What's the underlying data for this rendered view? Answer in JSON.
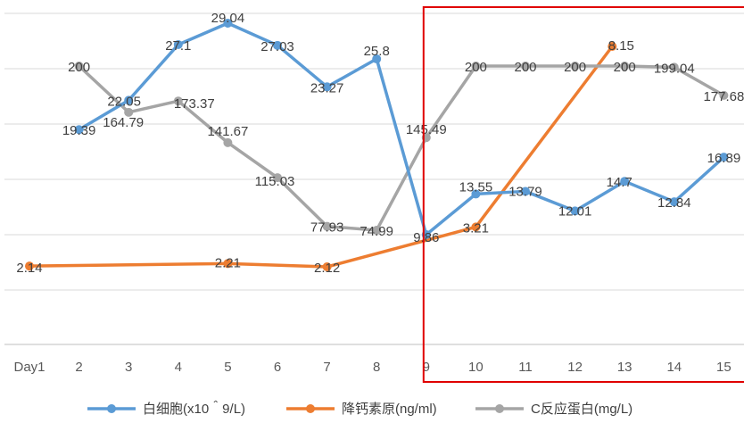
{
  "chart_data": {
    "type": "line",
    "title": "",
    "xlabel": "",
    "ylabel": "",
    "categories": [
      "Day1",
      "2",
      "3",
      "4",
      "5",
      "6",
      "7",
      "8",
      "9",
      "10",
      "11",
      "12",
      "13",
      "14",
      "15"
    ],
    "grid": true,
    "legend_position": "bottom",
    "series": [
      {
        "name": "白细胞(x10＾9/L)",
        "color": "#5b9bd5",
        "points": [
          {
            "x": "2",
            "y": 19.39,
            "label": "19.39"
          },
          {
            "x": "3",
            "y": 22.05,
            "label": "22.05"
          },
          {
            "x": "4",
            "y": 27.1,
            "label": "27.1"
          },
          {
            "x": "5",
            "y": 29.04,
            "label": "29.04"
          },
          {
            "x": "6",
            "y": 27.03,
            "label": "27.03"
          },
          {
            "x": "7",
            "y": 23.27,
            "label": "23.27"
          },
          {
            "x": "8",
            "y": 25.8,
            "label": "25.8"
          },
          {
            "x": "9",
            "y": 9.86,
            "label": "9.86"
          },
          {
            "x": "10",
            "y": 13.55,
            "label": "13.55"
          },
          {
            "x": "11",
            "y": 13.79,
            "label": "13.79"
          },
          {
            "x": "12",
            "y": 12.01,
            "label": "12.01"
          },
          {
            "x": "13",
            "y": 14.7,
            "label": "14.7"
          },
          {
            "x": "14",
            "y": 12.84,
            "label": "12.84"
          },
          {
            "x": "15",
            "y": 16.89,
            "label": "16.89"
          }
        ]
      },
      {
        "name": "降钙素原(ng/ml)",
        "color": "#ed7d31",
        "points": [
          {
            "x": "Day1",
            "y": 2.14,
            "label": "2.14"
          },
          {
            "x": "5",
            "y": 2.21,
            "label": "2.21"
          },
          {
            "x": "7",
            "y": 2.12,
            "label": "2.12"
          },
          {
            "x": "10",
            "y": 3.21,
            "label": "3.21"
          },
          {
            "x": "12.75",
            "y": 8.15,
            "label": "8.15"
          }
        ]
      },
      {
        "name": "C反应蛋白(mg/L)",
        "color": "#a5a5a5",
        "points": [
          {
            "x": "2",
            "y": 200,
            "label": "200"
          },
          {
            "x": "3",
            "y": 164.79,
            "label": "164.79"
          },
          {
            "x": "4",
            "y": 173.37,
            "label": "173.37"
          },
          {
            "x": "5",
            "y": 141.67,
            "label": "141.67"
          },
          {
            "x": "6",
            "y": 115.03,
            "label": "115.03"
          },
          {
            "x": "7",
            "y": 77.93,
            "label": "77.93"
          },
          {
            "x": "8",
            "y": 74.99,
            "label": "74.99"
          },
          {
            "x": "9",
            "y": 145.49,
            "label": "145.49"
          },
          {
            "x": "10",
            "y": 200,
            "label": "200"
          },
          {
            "x": "11",
            "y": 200,
            "label": "200"
          },
          {
            "x": "12",
            "y": 200,
            "label": "200"
          },
          {
            "x": "13",
            "y": 200,
            "label": "200"
          },
          {
            "x": "14",
            "y": 199.04,
            "label": "199.04"
          },
          {
            "x": "15",
            "y": 177.68,
            "label": "177.68"
          }
        ]
      }
    ],
    "highlight_box": {
      "from": "9",
      "to": "15",
      "color": "#e00000"
    }
  }
}
